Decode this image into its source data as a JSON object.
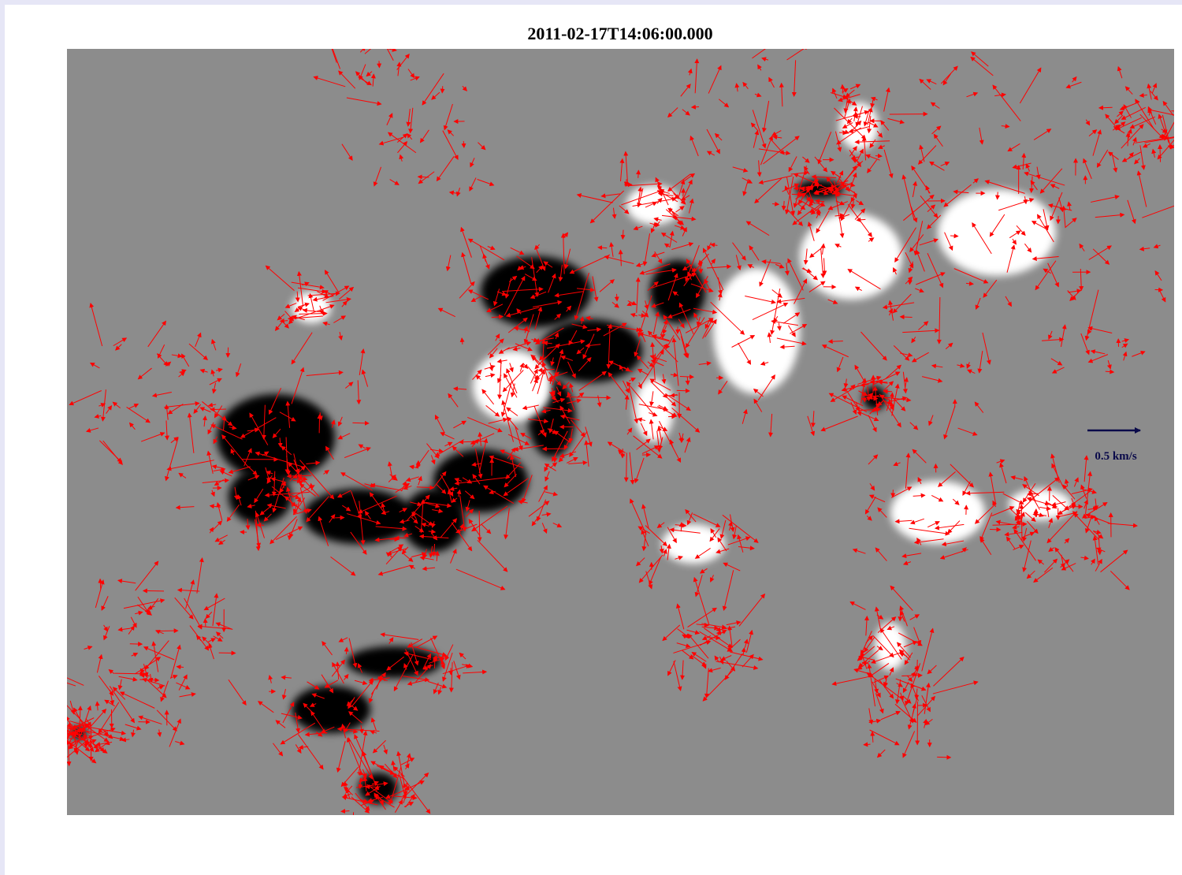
{
  "title": "2011-02-17T14:06:00.000",
  "scale_label": "0.5 km/s"
}
